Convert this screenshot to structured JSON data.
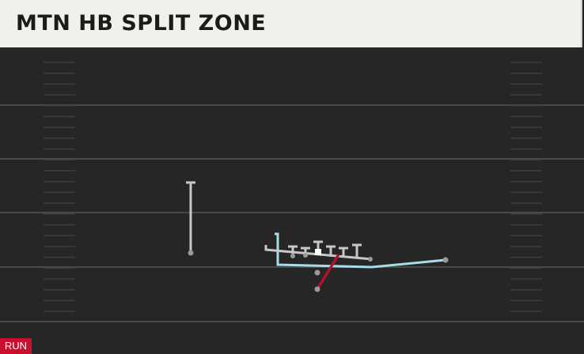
{
  "header": {
    "title": "MTN HB SPLIT ZONE"
  },
  "badge": {
    "label": "RUN"
  }
}
